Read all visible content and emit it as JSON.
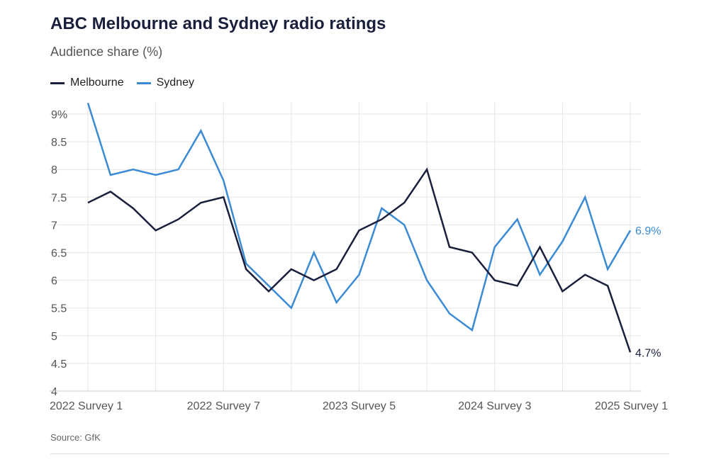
{
  "title": "ABC Melbourne and Sydney radio ratings",
  "subtitle": "Audience share (%)",
  "source": "Source: GfK",
  "chart_data": {
    "type": "line",
    "title": "ABC Melbourne and Sydney radio ratings",
    "ylabel": "Audience share (%)",
    "ylim": [
      4,
      9.2
    ],
    "yticks": [
      "4",
      "4.5",
      "5",
      "5.5",
      "6",
      "6.5",
      "7",
      "7.5",
      "8",
      "8.5",
      "9%"
    ],
    "ytick_values": [
      4,
      4.5,
      5,
      5.5,
      6,
      6.5,
      7,
      7.5,
      8,
      8.5,
      9
    ],
    "xtick_labels": [
      {
        "i": 0,
        "label": "2022 Survey 1"
      },
      {
        "i": 6,
        "label": "2022 Survey 7"
      },
      {
        "i": 12,
        "label": "2023 Survey 5"
      },
      {
        "i": 18,
        "label": "2024 Survey 3"
      },
      {
        "i": 24,
        "label": "2025 Survey 1"
      }
    ],
    "n_points": 25,
    "series": [
      {
        "name": "Melbourne",
        "color": "#1a1f3c",
        "end_label": "4.7%",
        "values": [
          7.4,
          7.6,
          7.3,
          6.9,
          7.1,
          7.4,
          7.5,
          6.2,
          5.8,
          6.2,
          6.0,
          6.2,
          6.9,
          7.1,
          7.4,
          8.0,
          6.6,
          6.5,
          6.0,
          5.9,
          6.6,
          5.8,
          6.1,
          5.9,
          4.7
        ]
      },
      {
        "name": "Sydney",
        "color": "#3b8bd4",
        "end_label": "6.9%",
        "values": [
          9.2,
          7.9,
          8.0,
          7.9,
          8.0,
          8.7,
          7.8,
          6.3,
          5.9,
          5.5,
          6.5,
          5.6,
          6.1,
          7.3,
          7.0,
          6.0,
          5.4,
          5.1,
          6.6,
          7.1,
          6.1,
          6.7,
          7.5,
          6.2,
          6.9
        ]
      }
    ],
    "grid": true,
    "legend": "top-left"
  }
}
